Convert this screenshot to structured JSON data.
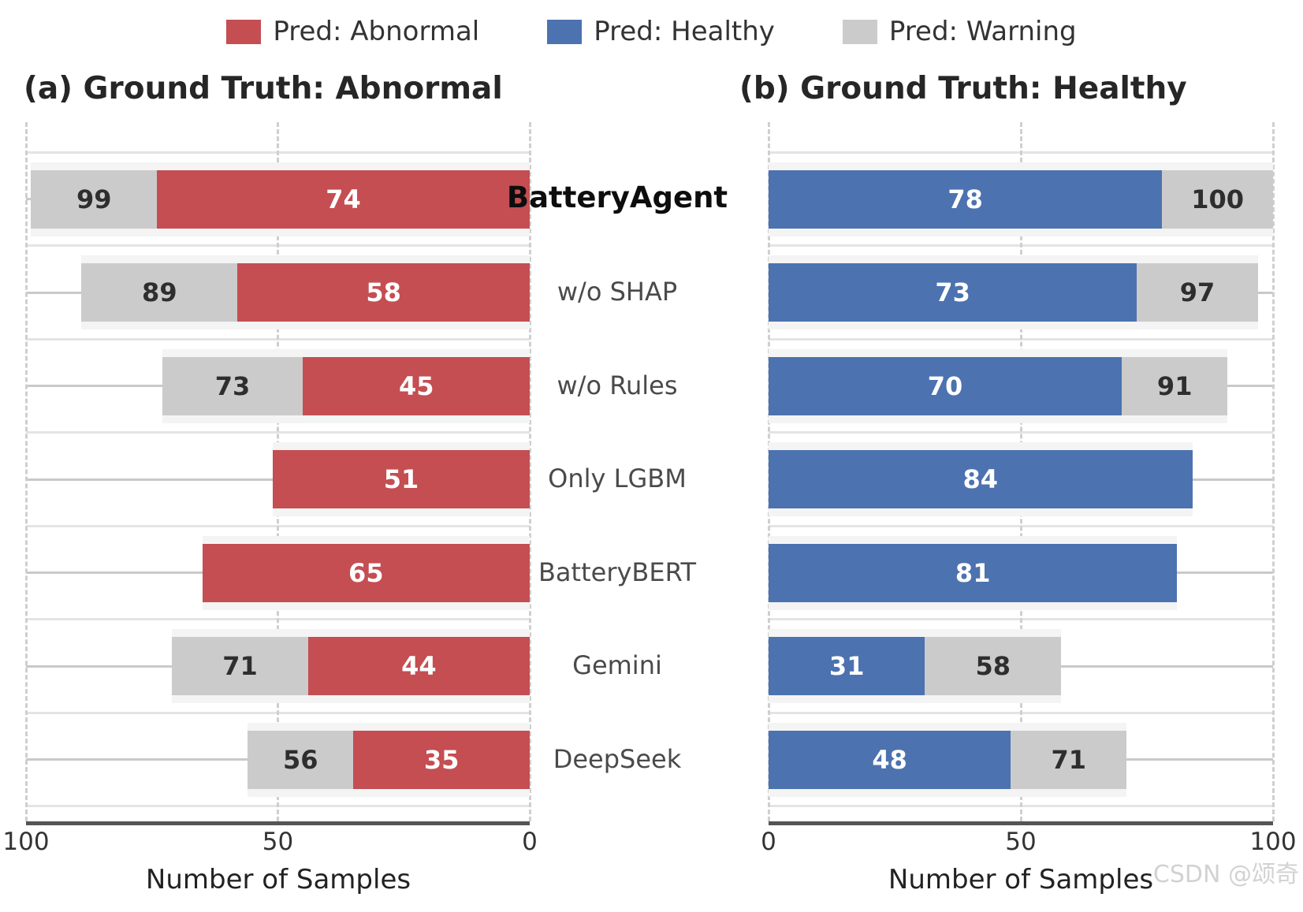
{
  "watermark": "CSDN @颂奇",
  "legend": {
    "items": [
      {
        "label": "Pred: Abnormal",
        "color": "#c44e52"
      },
      {
        "label": "Pred: Healthy",
        "color": "#4c72b0"
      },
      {
        "label": "Pred: Warning",
        "color": "#cbcbcb"
      }
    ]
  },
  "chart_data": {
    "type": "bar",
    "orientation": "horizontal",
    "grid": true,
    "legend_position": "top",
    "categories": [
      "BatteryAgent",
      "w/o SHAP",
      "w/o Rules",
      "Only LGBM",
      "BatteryBERT",
      "Gemini",
      "DeepSeek"
    ],
    "emphasized_category_index": 0,
    "panels": [
      {
        "id": "a",
        "title": "(a) Ground Truth: Abnormal",
        "xlabel": "Number of Samples",
        "direction": "right-to-left",
        "xlim": [
          0,
          100
        ],
        "ticks": [
          "100",
          "50",
          "0"
        ],
        "tick_values": [
          100,
          50,
          0
        ],
        "series": [
          {
            "name": "Pred: Abnormal",
            "role": "primary",
            "color": "#c44e52",
            "values": [
              74,
              58,
              45,
              51,
              65,
              44,
              35
            ]
          },
          {
            "name": "Pred: Warning",
            "role": "stacked-total",
            "color": "#cbcbcb",
            "totals": [
              99,
              89,
              73,
              null,
              null,
              71,
              56
            ]
          }
        ]
      },
      {
        "id": "b",
        "title": "(b) Ground Truth: Healthy",
        "xlabel": "Number of Samples",
        "direction": "left-to-right",
        "xlim": [
          0,
          100
        ],
        "ticks": [
          "0",
          "50",
          "100"
        ],
        "tick_values": [
          0,
          50,
          100
        ],
        "series": [
          {
            "name": "Pred: Healthy",
            "role": "primary",
            "color": "#4c72b0",
            "values": [
              78,
              73,
              70,
              84,
              81,
              31,
              48
            ]
          },
          {
            "name": "Pred: Warning",
            "role": "stacked-total",
            "color": "#cbcbcb",
            "totals": [
              100,
              97,
              91,
              null,
              null,
              58,
              71
            ]
          }
        ]
      }
    ]
  }
}
